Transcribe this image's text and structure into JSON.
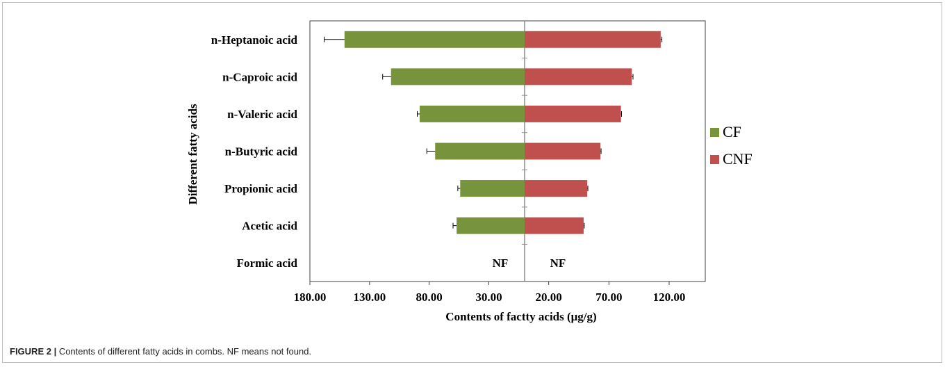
{
  "chart_data": {
    "type": "bar",
    "orientation": "horizontal-diverging",
    "categories": [
      "n-Heptanoic acid",
      "n-Caproic acid",
      "n-Valeric acid",
      "n-Butyric acid",
      "Propionic acid",
      "Acetic acid",
      "Formic acid"
    ],
    "series": [
      {
        "name": "CF",
        "color": "#77933c",
        "side": "left",
        "values": [
          151,
          112,
          88,
          75,
          54,
          57,
          null
        ],
        "errors": [
          17,
          7,
          2,
          7,
          2,
          3,
          null
        ]
      },
      {
        "name": "CNF",
        "color": "#c0504d",
        "side": "right",
        "values": [
          113,
          89,
          80,
          63,
          52,
          49,
          null
        ],
        "errors": [
          1,
          1,
          0.5,
          0.5,
          0.5,
          0.5,
          null
        ]
      }
    ],
    "missing_label": "NF",
    "left_ticks": [
      "180.00",
      "130.00",
      "80.00",
      "30.00"
    ],
    "right_ticks": [
      "20.00",
      "70.00",
      "120.00"
    ],
    "left_xlim": [
      180,
      0
    ],
    "right_xlim": [
      0,
      150
    ],
    "xlabel": "Contents of factty acids (μg/g)",
    "ylabel": "Different fatty acids",
    "legend": {
      "placement": "right",
      "entries": [
        "CF",
        "CNF"
      ]
    }
  },
  "caption": {
    "label": "FIGURE 2 |",
    "text": " Contents of different fatty acids in combs. NF means not found."
  }
}
